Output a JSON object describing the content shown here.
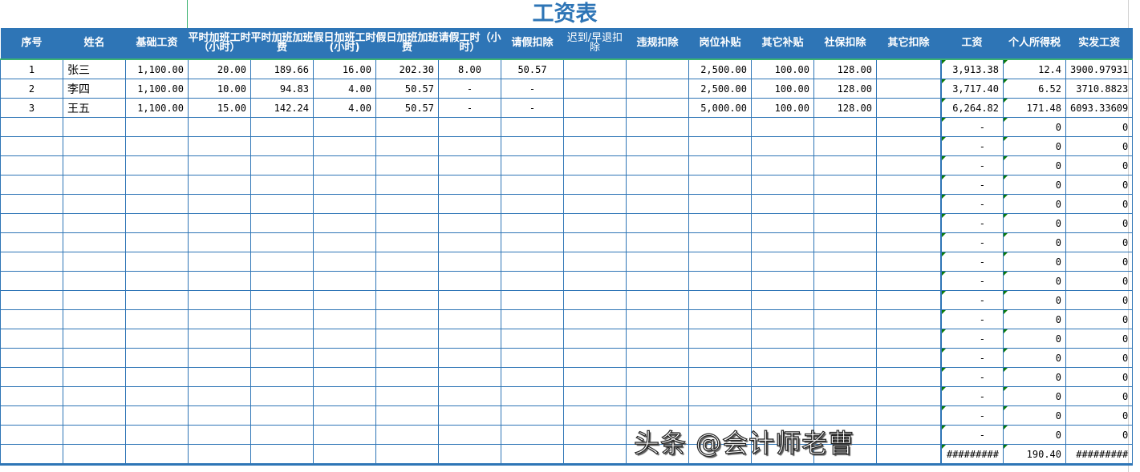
{
  "title": "工资表",
  "headers": [
    "序号",
    "姓名",
    "基础工资",
    "平时加班工时（小时）",
    "平时加班加班费",
    "假日加班工时(小时)",
    "假日加班加班费",
    "请假工时（小时）",
    "请假扣除",
    "迟到/早退扣除",
    "违规扣除",
    "岗位补贴",
    "其它补贴",
    "社保扣除",
    "其它扣除",
    "工资",
    "个人所得税",
    "实发工资"
  ],
  "rows": [
    [
      "1",
      "张三",
      "1,100.00",
      "20.00",
      "189.66",
      "16.00",
      "202.30",
      "8.00",
      "50.57",
      "",
      "",
      "2,500.00",
      "100.00",
      "128.00",
      "",
      "3,913.38",
      "12.4",
      "3900.97931"
    ],
    [
      "2",
      "李四",
      "1,100.00",
      "10.00",
      "94.83",
      "4.00",
      "50.57",
      "-",
      "-",
      "",
      "",
      "2,500.00",
      "100.00",
      "128.00",
      "",
      "3,717.40",
      "6.52",
      "3710.8823"
    ],
    [
      "3",
      "王五",
      "1,100.00",
      "15.00",
      "142.24",
      "4.00",
      "50.57",
      "-",
      "-",
      "",
      "",
      "5,000.00",
      "100.00",
      "128.00",
      "",
      "6,264.82",
      "171.48",
      "6093.33609"
    ]
  ],
  "blank_row": {
    "salary": "-",
    "tax": "0",
    "net": "0"
  },
  "blank_row_count": 17,
  "total_row": {
    "salary": "#########",
    "tax": "190.40",
    "net": "#########"
  },
  "watermark": "头条 @会计师老曹"
}
